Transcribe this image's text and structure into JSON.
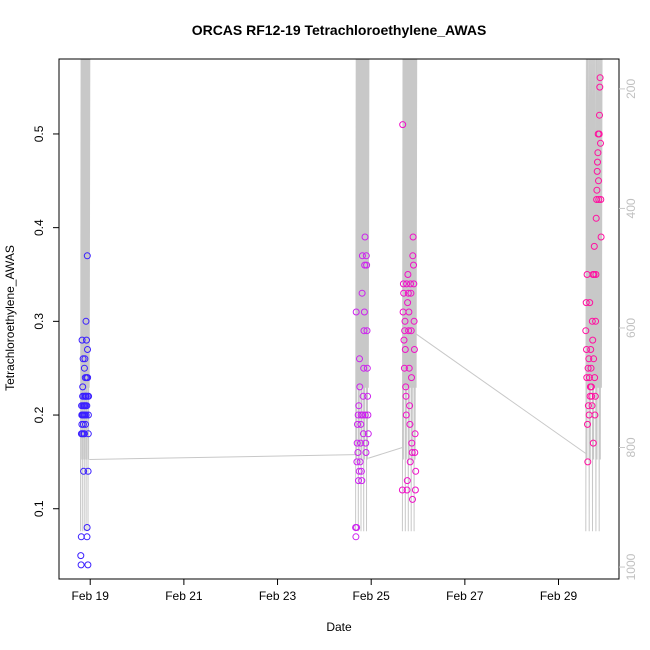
{
  "chart_data": {
    "type": "scatter",
    "title": "ORCAS RF12-19 Tetrachloroethylene_AWAS",
    "xlabel": "Date",
    "ylabel": "Tetrachloroethylene_AWAS",
    "x_start": "2016-02-18",
    "xlim": [
      "2016-02-18 08:00",
      "2016-03-01 07:00"
    ],
    "ylim": [
      0.025,
      0.58
    ],
    "x_ticks": [
      {
        "date": "2016-02-19",
        "label": "Feb 19"
      },
      {
        "date": "2016-02-21",
        "label": "Feb 21"
      },
      {
        "date": "2016-02-23",
        "label": "Feb 23"
      },
      {
        "date": "2016-02-25",
        "label": "Feb 25"
      },
      {
        "date": "2016-02-27",
        "label": "Feb 27"
      },
      {
        "date": "2016-02-29",
        "label": "Feb 29"
      }
    ],
    "y_ticks": [
      {
        "value": 0.1,
        "label": "0.1"
      },
      {
        "value": 0.2,
        "label": "0.2"
      },
      {
        "value": 0.3,
        "label": "0.3"
      },
      {
        "value": 0.4,
        "label": "0.4"
      },
      {
        "value": 0.5,
        "label": "0.5"
      }
    ],
    "right_axis": {
      "description": "pressure (hPa), reversed, gray",
      "lim": [
        1020,
        150
      ],
      "ticks": [
        {
          "value": 200,
          "label": "200"
        },
        {
          "value": 400,
          "label": "400"
        },
        {
          "value": 600,
          "label": "600"
        },
        {
          "value": 800,
          "label": "800"
        },
        {
          "value": 1000,
          "label": "1000"
        }
      ],
      "color": "#c8c8c8"
    },
    "point_colors": {
      "flight1": "#3a1fff",
      "flight2": "#cc22ee",
      "flight3": "#f010c8",
      "flight4": "#ff10a0"
    },
    "series": [
      {
        "name": "flight1",
        "color": "#3a1fff",
        "x": [
          "2016-02-18 19:10",
          "2016-02-18 19:20",
          "2016-02-18 19:25",
          "2016-02-18 19:30",
          "2016-02-18 19:35",
          "2016-02-18 19:40",
          "2016-02-18 19:45",
          "2016-02-18 19:50",
          "2016-02-18 19:55",
          "2016-02-18 20:00",
          "2016-02-18 20:05",
          "2016-02-18 20:10",
          "2016-02-18 20:15",
          "2016-02-18 20:20",
          "2016-02-18 20:25",
          "2016-02-18 20:30",
          "2016-02-18 20:35",
          "2016-02-18 20:40",
          "2016-02-18 20:45",
          "2016-02-18 20:50",
          "2016-02-18 20:55",
          "2016-02-18 21:00",
          "2016-02-18 21:05",
          "2016-02-18 21:10",
          "2016-02-18 21:15",
          "2016-02-18 21:20",
          "2016-02-18 21:25",
          "2016-02-18 21:30",
          "2016-02-18 21:35",
          "2016-02-18 21:40",
          "2016-02-18 21:45",
          "2016-02-18 21:50",
          "2016-02-18 21:55",
          "2016-02-18 22:00",
          "2016-02-18 22:05",
          "2016-02-18 22:10",
          "2016-02-18 22:15",
          "2016-02-18 22:20",
          "2016-02-18 22:25",
          "2016-02-18 22:30",
          "2016-02-18 22:35",
          "2016-02-18 22:40",
          "2016-02-18 22:45",
          "2016-02-18 22:50",
          "2016-02-18 22:55",
          "2016-02-18 23:00",
          "2016-02-18 23:05",
          "2016-02-18 23:10"
        ],
        "y": [
          0.05,
          0.04,
          0.07,
          0.18,
          0.21,
          0.2,
          0.19,
          0.28,
          0.18,
          0.2,
          0.22,
          0.23,
          0.21,
          0.26,
          0.2,
          0.19,
          0.14,
          0.18,
          0.22,
          0.21,
          0.2,
          0.25,
          0.18,
          0.21,
          0.26,
          0.2,
          0.22,
          0.24,
          0.19,
          0.22,
          0.21,
          0.3,
          0.2,
          0.22,
          0.28,
          0.24,
          0.21,
          0.07,
          0.08,
          0.37,
          0.27,
          0.24,
          0.22,
          0.04,
          0.14,
          0.18,
          0.2,
          0.22
        ]
      },
      {
        "name": "flight2",
        "color": "#cc22ee",
        "x": [
          "2016-02-24 16:00",
          "2016-02-24 16:10",
          "2016-02-24 16:20",
          "2016-02-24 16:30",
          "2016-02-24 16:40",
          "2016-02-24 16:50",
          "2016-02-24 17:00",
          "2016-02-24 17:10",
          "2016-02-24 17:20",
          "2016-02-24 17:30",
          "2016-02-24 17:40",
          "2016-02-24 17:50",
          "2016-02-24 18:00",
          "2016-02-24 18:10",
          "2016-02-24 18:20",
          "2016-02-24 18:30",
          "2016-02-24 18:40",
          "2016-02-24 18:50",
          "2016-02-24 19:00",
          "2016-02-24 19:10",
          "2016-02-24 19:20",
          "2016-02-24 19:30",
          "2016-02-24 19:40",
          "2016-02-24 19:50",
          "2016-02-24 20:00",
          "2016-02-24 20:10",
          "2016-02-24 20:20",
          "2016-02-24 20:30",
          "2016-02-24 20:40",
          "2016-02-24 20:50",
          "2016-02-24 21:00",
          "2016-02-24 21:10",
          "2016-02-24 21:20",
          "2016-02-24 21:30",
          "2016-02-24 21:40",
          "2016-02-24 21:50",
          "2016-02-24 22:00",
          "2016-02-24 22:10",
          "2016-02-24 22:20",
          "2016-02-24 22:30"
        ],
        "y": [
          0.08,
          0.07,
          0.31,
          0.08,
          0.15,
          0.17,
          0.19,
          0.16,
          0.2,
          0.13,
          0.21,
          0.14,
          0.26,
          0.23,
          0.15,
          0.17,
          0.19,
          0.2,
          0.14,
          0.13,
          0.33,
          0.37,
          0.2,
          0.22,
          0.18,
          0.25,
          0.29,
          0.31,
          0.36,
          0.39,
          0.2,
          0.17,
          0.16,
          0.37,
          0.36,
          0.29,
          0.25,
          0.22,
          0.2,
          0.18
        ]
      },
      {
        "name": "flight3",
        "color": "#f010c8",
        "x": [
          "2016-02-25 16:00",
          "2016-02-25 16:10",
          "2016-02-25 16:20",
          "2016-02-25 16:30",
          "2016-02-25 16:40",
          "2016-02-25 16:50",
          "2016-02-25 17:00",
          "2016-02-25 17:10",
          "2016-02-25 17:20",
          "2016-02-25 17:30",
          "2016-02-25 17:40",
          "2016-02-25 17:50",
          "2016-02-25 18:00",
          "2016-02-25 18:10",
          "2016-02-25 18:20",
          "2016-02-25 18:30",
          "2016-02-25 18:40",
          "2016-02-25 18:50",
          "2016-02-25 19:00",
          "2016-02-25 19:10",
          "2016-02-25 19:20",
          "2016-02-25 19:30",
          "2016-02-25 19:40",
          "2016-02-25 19:50",
          "2016-02-25 20:00",
          "2016-02-25 20:10",
          "2016-02-25 20:20",
          "2016-02-25 20:30",
          "2016-02-25 20:40",
          "2016-02-25 20:50",
          "2016-02-25 21:00",
          "2016-02-25 21:10",
          "2016-02-25 21:20",
          "2016-02-25 21:30",
          "2016-02-25 21:40",
          "2016-02-25 21:50",
          "2016-02-25 22:00",
          "2016-02-25 22:10",
          "2016-02-25 22:20",
          "2016-02-25 22:30",
          "2016-02-25 22:40",
          "2016-02-25 22:50"
        ],
        "y": [
          0.12,
          0.51,
          0.31,
          0.34,
          0.33,
          0.28,
          0.25,
          0.29,
          0.3,
          0.27,
          0.23,
          0.22,
          0.2,
          0.34,
          0.12,
          0.13,
          0.32,
          0.35,
          0.33,
          0.29,
          0.31,
          0.25,
          0.21,
          0.19,
          0.15,
          0.34,
          0.33,
          0.29,
          0.24,
          0.17,
          0.16,
          0.11,
          0.37,
          0.39,
          0.36,
          0.34,
          0.3,
          0.27,
          0.16,
          0.18,
          0.12,
          0.14
        ]
      },
      {
        "name": "flight4",
        "color": "#ff10a0",
        "x": [
          "2016-02-29 14:00",
          "2016-02-29 14:10",
          "2016-02-29 14:20",
          "2016-02-29 14:30",
          "2016-02-29 14:40",
          "2016-02-29 14:50",
          "2016-02-29 15:00",
          "2016-02-29 15:10",
          "2016-02-29 15:20",
          "2016-02-29 15:30",
          "2016-02-29 15:40",
          "2016-02-29 15:50",
          "2016-02-29 16:00",
          "2016-02-29 16:10",
          "2016-02-29 16:20",
          "2016-02-29 16:30",
          "2016-02-29 16:40",
          "2016-02-29 16:50",
          "2016-02-29 17:00",
          "2016-02-29 17:10",
          "2016-02-29 17:20",
          "2016-02-29 17:30",
          "2016-02-29 17:40",
          "2016-02-29 17:50",
          "2016-02-29 18:00",
          "2016-02-29 18:10",
          "2016-02-29 18:20",
          "2016-02-29 18:30",
          "2016-02-29 18:40",
          "2016-02-29 18:50",
          "2016-02-29 19:00",
          "2016-02-29 19:10",
          "2016-02-29 19:20",
          "2016-02-29 19:30",
          "2016-02-29 19:40",
          "2016-02-29 19:50",
          "2016-02-29 20:00",
          "2016-02-29 20:10",
          "2016-02-29 20:20",
          "2016-02-29 20:30",
          "2016-02-29 20:40",
          "2016-02-29 20:50",
          "2016-02-29 21:00",
          "2016-02-29 21:10",
          "2016-02-29 21:20",
          "2016-02-29 21:30",
          "2016-02-29 21:40",
          "2016-02-29 21:50"
        ],
        "y": [
          0.29,
          0.32,
          0.27,
          0.24,
          0.35,
          0.19,
          0.15,
          0.25,
          0.21,
          0.26,
          0.2,
          0.24,
          0.32,
          0.22,
          0.23,
          0.27,
          0.25,
          0.23,
          0.22,
          0.21,
          0.3,
          0.28,
          0.35,
          0.17,
          0.26,
          0.35,
          0.38,
          0.24,
          0.2,
          0.22,
          0.3,
          0.35,
          0.41,
          0.43,
          0.44,
          0.46,
          0.47,
          0.48,
          0.5,
          0.45,
          0.43,
          0.5,
          0.52,
          0.55,
          0.56,
          0.49,
          0.43,
          0.39
        ]
      }
    ],
    "pressure_trace": {
      "description": "gray flight pressure trace (hPa) connecting flights; spikes to top during ascents/descents",
      "segments": [
        {
          "x": [
            "2016-02-18 19:00",
            "2016-02-18 23:30"
          ],
          "base_hpa": 1000
        },
        {
          "x": [
            "2016-02-18 23:30",
            "2016-02-24 16:00"
          ],
          "hpa": [
            820,
            812
          ]
        },
        {
          "x": [
            "2016-02-24 16:00",
            "2016-02-24 22:30"
          ],
          "base_hpa": 1000
        },
        {
          "x": [
            "2016-02-24 22:30",
            "2016-02-25 16:00"
          ],
          "hpa": [
            818,
            800
          ]
        },
        {
          "x": [
            "2016-02-25 16:00",
            "2016-02-25 23:00"
          ],
          "base_hpa": 1000
        },
        {
          "x": [
            "2016-02-25 23:00",
            "2016-02-29 14:00"
          ],
          "hpa": [
            610,
            810
          ]
        },
        {
          "x": [
            "2016-02-29 14:00",
            "2016-02-29 22:00"
          ],
          "base_hpa": 1000
        }
      ]
    }
  }
}
